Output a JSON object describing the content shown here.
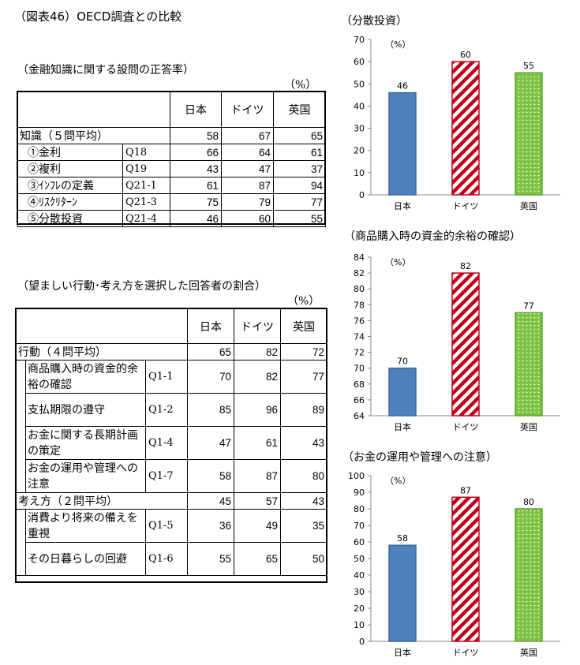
{
  "page_title": "（図表46）OECD調査との比較",
  "table1": {
    "title": "（金融知識に関する設問の正答率）",
    "unit": "（%）",
    "headers": [
      "日本",
      "ドイツ",
      "英国"
    ],
    "summary": {
      "label": "知識（５問平均）",
      "values": [
        "58",
        "67",
        "65"
      ]
    },
    "rows": [
      {
        "label": "①金利",
        "code": "Q18",
        "values": [
          "66",
          "64",
          "61"
        ]
      },
      {
        "label": "②複利",
        "code": "Q19",
        "values": [
          "43",
          "47",
          "37"
        ]
      },
      {
        "label": "③ｲﾝﾌﾚの定義",
        "code": "Q21-1",
        "values": [
          "61",
          "87",
          "94"
        ]
      },
      {
        "label": "④ﾘｽｸﾘﾀｰﾝ",
        "code": "Q21-3",
        "values": [
          "75",
          "79",
          "77"
        ]
      },
      {
        "label": "⑤分散投資",
        "code": "Q21-4",
        "values": [
          "46",
          "60",
          "55"
        ]
      }
    ]
  },
  "table2": {
    "title": "（望ましい行動･考え方を選択した回答者の割合）",
    "unit": "（%）",
    "headers": [
      "日本",
      "ドイツ",
      "英国"
    ],
    "group1": {
      "label": "行動（４問平均）",
      "values": [
        "65",
        "82",
        "72"
      ]
    },
    "rows1": [
      {
        "label": "商品購入時の資金的余裕の確認",
        "code": "Q1-1",
        "values": [
          "70",
          "82",
          "77"
        ]
      },
      {
        "label": "支払期限の遵守",
        "code": "Q1-2",
        "values": [
          "85",
          "96",
          "89"
        ]
      },
      {
        "label": "お金に関する長期計画の策定",
        "code": "Q1-4",
        "values": [
          "47",
          "61",
          "43"
        ]
      },
      {
        "label": "お金の運用や管理への注意",
        "code": "Q1-7",
        "values": [
          "58",
          "87",
          "80"
        ]
      }
    ],
    "group2": {
      "label": "考え方（２問平均）",
      "values": [
        "45",
        "57",
        "43"
      ]
    },
    "rows2": [
      {
        "label": "消費より将来の備えを重視",
        "code": "Q1-5",
        "values": [
          "36",
          "49",
          "35"
        ]
      },
      {
        "label": "その日暮らしの回避",
        "code": "Q1-6",
        "values": [
          "55",
          "65",
          "50"
        ]
      }
    ]
  },
  "chart_data": [
    {
      "type": "bar",
      "title": "（分散投資）",
      "unit_label": "（%）",
      "categories": [
        "日本",
        "ドイツ",
        "英国"
      ],
      "values": [
        46,
        60,
        55
      ],
      "ylim": [
        0,
        70
      ],
      "yticks": [
        0,
        10,
        20,
        30,
        40,
        50,
        60,
        70
      ],
      "colors": {
        "日本": "#4f81bd",
        "ドイツ": "#c0001a",
        "英国": "#7cc243"
      },
      "patterns": [
        "solid",
        "diagonal-stripes",
        "dots"
      ]
    },
    {
      "type": "bar",
      "title": "（商品購入時の資金的余裕の確認）",
      "unit_label": "（%）",
      "categories": [
        "日本",
        "ドイツ",
        "英国"
      ],
      "values": [
        70,
        82,
        77
      ],
      "ylim": [
        64,
        84
      ],
      "yticks": [
        64,
        66,
        68,
        70,
        72,
        74,
        76,
        78,
        80,
        82,
        84
      ],
      "colors": {
        "日本": "#4f81bd",
        "ドイツ": "#c0001a",
        "英国": "#7cc243"
      },
      "patterns": [
        "solid",
        "diagonal-stripes",
        "dots"
      ]
    },
    {
      "type": "bar",
      "title": "（お金の運用や管理への注意）",
      "unit_label": "（%）",
      "categories": [
        "日本",
        "ドイツ",
        "英国"
      ],
      "values": [
        58,
        87,
        80
      ],
      "ylim": [
        0,
        100
      ],
      "yticks": [
        0,
        10,
        20,
        30,
        40,
        50,
        60,
        70,
        80,
        90,
        100
      ],
      "colors": {
        "日本": "#4f81bd",
        "ドイツ": "#c0001a",
        "英国": "#7cc243"
      },
      "patterns": [
        "solid",
        "diagonal-stripes",
        "dots"
      ]
    }
  ]
}
